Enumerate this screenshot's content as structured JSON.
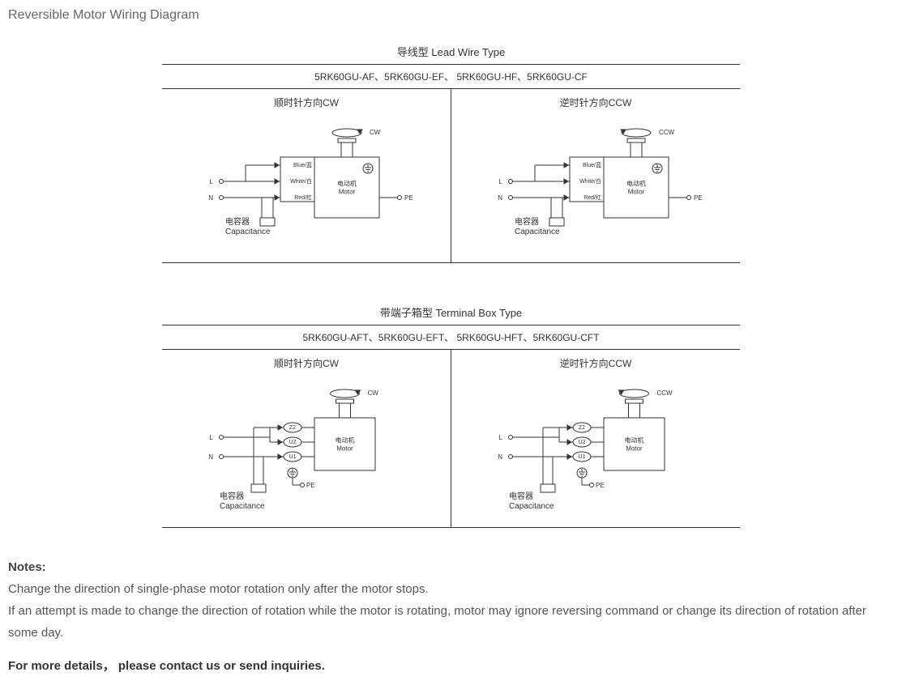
{
  "page_title": "Reversible Motor Wiring Diagram",
  "sections": [
    {
      "header": "导线型 Lead Wire Type",
      "models": "5RK60GU-AF、5RK60GU-EF、 5RK60GU-HF、5RK60GU-CF",
      "type": "lead",
      "cells": [
        {
          "title": "顺时针方向CW",
          "dir_label": "CW",
          "arrow": "cw"
        },
        {
          "title": "逆时针方向CCW",
          "dir_label": "CCW",
          "arrow": "ccw"
        }
      ]
    },
    {
      "header": "带端子箱型 Terminal Box Type",
      "models": "5RK60GU-AFT、5RK60GU-EFT、 5RK60GU-HFT、5RK60GU-CFT",
      "type": "terminal",
      "cells": [
        {
          "title": "顺时针方向CW",
          "dir_label": "CW",
          "arrow": "cw"
        },
        {
          "title": "逆时针方向CCW",
          "dir_label": "CCW",
          "arrow": "ccw"
        }
      ]
    }
  ],
  "labels": {
    "motor_cn": "电动机",
    "motor_en": "Motor",
    "cap_cn": "电容器",
    "cap_en": "Capacitance",
    "pe": "PE",
    "L": "L",
    "N": "N",
    "blue": "Blue/蓝",
    "white": "White/白",
    "red": "Red/红",
    "z2": "Z2",
    "u2": "U2",
    "u1": "U1"
  },
  "style": {
    "stroke": "#333333",
    "text_color": "#333333",
    "small_font": 8,
    "tiny_font": 7,
    "label_font": 10
  },
  "notes": {
    "heading": "Notes:",
    "line1": "Change the direction of single-phase motor rotation only after the motor stops.",
    "line2": "If an attempt is made to change the direction of rotation while the motor is rotating, motor may ignore reversing command or change its direction of rotation after some day.",
    "contact": "For more details， please contact us or send inquiries."
  }
}
